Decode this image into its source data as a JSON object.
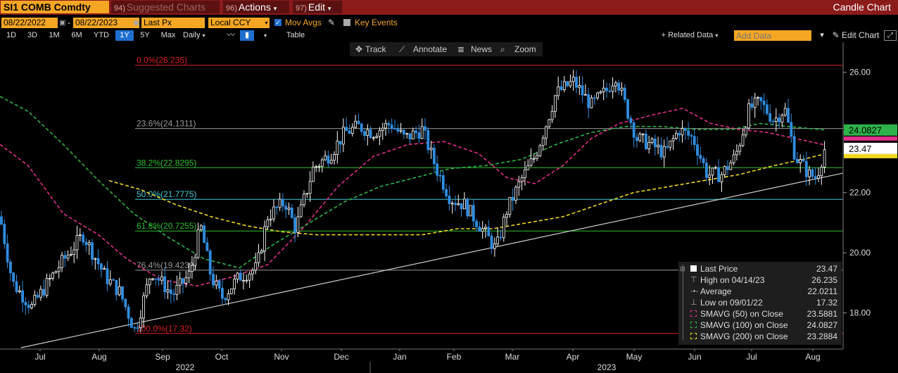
{
  "header": {
    "ticker": "SI1 COMB Comdty",
    "suggested_num": "94)",
    "suggested_label": "Suggested Charts",
    "actions_num": "96)",
    "actions_label": "Actions",
    "edit_num": "97)",
    "edit_label": "Edit",
    "chart_type": "Candle Chart"
  },
  "controls": {
    "start_date": "08/22/2022",
    "end_date": "08/22/2023",
    "date_sep": "-",
    "price_field": "Last Px",
    "currency": "Local CCY",
    "mov_avgs_label": "Mov Avgs",
    "key_events_label": "Key Events",
    "periods": [
      "1D",
      "3D",
      "1M",
      "6M",
      "YTD",
      "1Y",
      "5Y",
      "Max"
    ],
    "selected_period": "1Y",
    "frequency": "Daily",
    "table_label": "Table",
    "related_data": "+ Related Data",
    "add_data_placeholder": "Add Data",
    "edit_chart": "Edit Chart"
  },
  "toolbar": {
    "track": "Track",
    "annotate": "Annotate",
    "news": "News",
    "zoom": "Zoom"
  },
  "colors": {
    "price": "#2e8de0",
    "sma50": "#e0308a",
    "sma100": "#2db34a",
    "sma200": "#f0d820",
    "fib_red": "#e02020",
    "fib_grey": "#9a9a9a",
    "fib_green": "#30c030",
    "fib_cyan": "#40c8d8",
    "trendline": "#cccccc",
    "header_bg": "#8b1a1a",
    "ticker_bg": "#f5a623"
  },
  "chart_data": {
    "type": "candlestick",
    "ylim": [
      16.8,
      27.0
    ],
    "yticks": [
      "26.00",
      "24.00",
      "22.00",
      "20.00",
      "18.00"
    ],
    "xlabels_month": [
      "Jul",
      "Aug",
      "Sep",
      "Oct",
      "Nov",
      "Dec",
      "Jan",
      "Feb",
      "Mar",
      "Apr",
      "May",
      "Jun",
      "Jul",
      "Aug"
    ],
    "xlabels_year": [
      "2022",
      "2023"
    ],
    "fibonacci": [
      {
        "label": "0.0%(26.235)",
        "value": 26.235,
        "color": "red"
      },
      {
        "label": "23.6%(24.1311)",
        "value": 24.1311,
        "color": "grey"
      },
      {
        "label": "38.2%(22.8295)",
        "value": 22.8295,
        "color": "green"
      },
      {
        "label": "50.0%(21.7775)",
        "value": 21.7775,
        "color": "cyan"
      },
      {
        "label": "61.8%(20.7255)",
        "value": 20.7255,
        "color": "green"
      },
      {
        "label": "76.4%(19.4239)",
        "value": 19.4239,
        "color": "grey"
      },
      {
        "label": "100.0%(17.32)",
        "value": 17.32,
        "color": "red"
      }
    ],
    "price_series": [
      {
        "month": "Jun-2022",
        "close": 21.1
      },
      {
        "month": "Jul-2022",
        "close": 18.6
      },
      {
        "month": "Aug-2022",
        "close": 20.3
      },
      {
        "month": "Sep-2022",
        "close": 18.4
      },
      {
        "month": "Oct-2022",
        "close": 19.0
      },
      {
        "month": "Nov-2022",
        "close": 20.9
      },
      {
        "month": "Dec-2022",
        "close": 23.9
      },
      {
        "month": "Jan-2023",
        "close": 23.6
      },
      {
        "month": "Feb-2023",
        "close": 21.8
      },
      {
        "month": "Mar-2023",
        "close": 22.6
      },
      {
        "month": "Apr-2023",
        "close": 25.2
      },
      {
        "month": "May-2023",
        "close": 23.5
      },
      {
        "month": "Jun-2023",
        "close": 22.6
      },
      {
        "month": "Jul-2023",
        "close": 24.2
      },
      {
        "month": "Aug-2023",
        "close": 23.47
      }
    ],
    "series": [
      {
        "name": "SMAVG (50)  on Close",
        "last": 23.5881
      },
      {
        "name": "SMAVG (100)  on Close",
        "last": 24.0827
      },
      {
        "name": "SMAVG (200)  on Close",
        "last": 23.2884
      }
    ],
    "axis_tags": [
      {
        "label": "24.0827",
        "value": 24.0827,
        "color": "green"
      },
      {
        "label": "23.47",
        "value": 23.47,
        "color": "white"
      }
    ]
  },
  "legend": {
    "last_price_label": "Last Price",
    "last_price": "23.47",
    "high_label": "High on 04/14/23",
    "high": "26.235",
    "average_label": "Average",
    "average": "22.0211",
    "low_label": "Low on 09/01/22",
    "low": "17.32",
    "sma50_label": "SMAVG (50)  on Close",
    "sma50": "23.5881",
    "sma100_label": "SMAVG (100)  on Close",
    "sma100": "24.0827",
    "sma200_label": "SMAVG (200)  on Close",
    "sma200": "23.2884"
  }
}
